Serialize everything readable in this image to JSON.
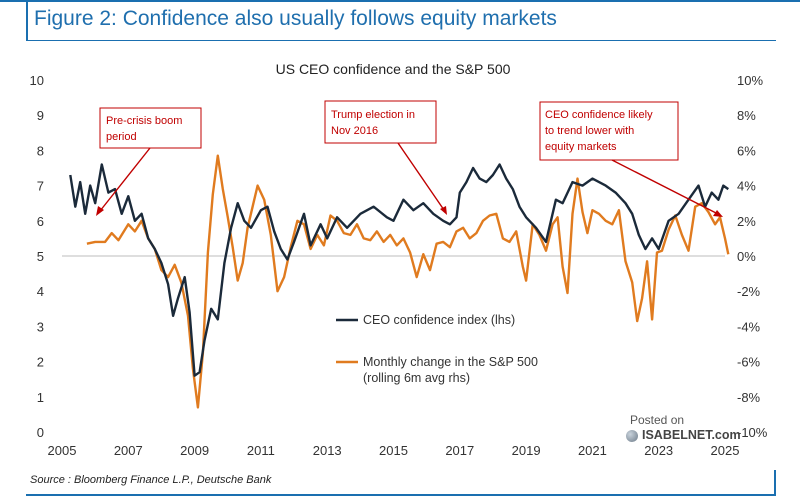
{
  "figure": {
    "title": "Figure 2: Confidence also usually follows equity markets",
    "source": "Source : Bloomberg Finance L.P., Deutsche Bank"
  },
  "watermark": {
    "line1": "Posted on",
    "line2": "ISABELNET.com"
  },
  "colors": {
    "accent": "#1f6fae",
    "ceo": "#1b2a3a",
    "sp": "#e07b1f",
    "annotation": "#c00000"
  },
  "chart_data": {
    "type": "line",
    "title": "US CEO confidence and the S&P 500",
    "x_ticks": [
      "2005",
      "2007",
      "2009",
      "2011",
      "2013",
      "2015",
      "2017",
      "2019",
      "2021",
      "2023",
      "2025"
    ],
    "y_left_ticks": [
      "0",
      "1",
      "2",
      "3",
      "4",
      "5",
      "6",
      "7",
      "8",
      "9",
      "10"
    ],
    "y_right_ticks": [
      "-10%",
      "-8%",
      "-6%",
      "-4%",
      "-2%",
      "0%",
      "2%",
      "4%",
      "6%",
      "8%",
      "10%"
    ],
    "xlim": [
      2005,
      2025
    ],
    "ylim_left": [
      0,
      10
    ],
    "ylim_right": [
      -10,
      10
    ],
    "grid": false,
    "series": [
      {
        "name": "CEO confidence index (lhs)",
        "axis": "left",
        "points": [
          [
            2005.25,
            7.3
          ],
          [
            2005.4,
            6.4
          ],
          [
            2005.55,
            7.1
          ],
          [
            2005.7,
            6.2
          ],
          [
            2005.85,
            7.0
          ],
          [
            2006.0,
            6.5
          ],
          [
            2006.2,
            7.6
          ],
          [
            2006.4,
            6.8
          ],
          [
            2006.6,
            6.9
          ],
          [
            2006.8,
            6.2
          ],
          [
            2007.0,
            6.7
          ],
          [
            2007.2,
            6.0
          ],
          [
            2007.4,
            6.2
          ],
          [
            2007.6,
            5.5
          ],
          [
            2007.8,
            5.2
          ],
          [
            2008.0,
            4.8
          ],
          [
            2008.2,
            4.2
          ],
          [
            2008.35,
            3.3
          ],
          [
            2008.5,
            3.8
          ],
          [
            2008.7,
            4.4
          ],
          [
            2008.85,
            3.4
          ],
          [
            2009.0,
            1.6
          ],
          [
            2009.15,
            1.7
          ],
          [
            2009.3,
            2.6
          ],
          [
            2009.5,
            3.5
          ],
          [
            2009.7,
            3.2
          ],
          [
            2009.9,
            4.8
          ],
          [
            2010.1,
            5.8
          ],
          [
            2010.3,
            6.5
          ],
          [
            2010.5,
            6.0
          ],
          [
            2010.7,
            5.8
          ],
          [
            2011.0,
            6.3
          ],
          [
            2011.2,
            6.4
          ],
          [
            2011.4,
            5.7
          ],
          [
            2011.6,
            5.2
          ],
          [
            2011.8,
            4.9
          ],
          [
            2012.0,
            5.4
          ],
          [
            2012.3,
            6.2
          ],
          [
            2012.5,
            5.3
          ],
          [
            2012.8,
            5.9
          ],
          [
            2013.0,
            5.5
          ],
          [
            2013.3,
            6.1
          ],
          [
            2013.6,
            5.8
          ],
          [
            2014.0,
            6.2
          ],
          [
            2014.4,
            6.4
          ],
          [
            2014.8,
            6.1
          ],
          [
            2015.0,
            6.0
          ],
          [
            2015.3,
            6.6
          ],
          [
            2015.6,
            6.3
          ],
          [
            2015.9,
            6.5
          ],
          [
            2016.2,
            6.2
          ],
          [
            2016.5,
            6.0
          ],
          [
            2016.7,
            5.9
          ],
          [
            2016.9,
            6.1
          ],
          [
            2017.0,
            6.8
          ],
          [
            2017.2,
            7.1
          ],
          [
            2017.4,
            7.5
          ],
          [
            2017.6,
            7.2
          ],
          [
            2017.8,
            7.1
          ],
          [
            2018.0,
            7.3
          ],
          [
            2018.2,
            7.6
          ],
          [
            2018.4,
            7.2
          ],
          [
            2018.6,
            6.9
          ],
          [
            2018.8,
            6.4
          ],
          [
            2019.0,
            6.1
          ],
          [
            2019.3,
            5.8
          ],
          [
            2019.6,
            5.4
          ],
          [
            2019.9,
            6.6
          ],
          [
            2020.1,
            6.5
          ],
          [
            2020.4,
            7.1
          ],
          [
            2020.7,
            7.0
          ],
          [
            2021.0,
            7.2
          ],
          [
            2021.4,
            7.0
          ],
          [
            2021.7,
            6.8
          ],
          [
            2022.0,
            6.5
          ],
          [
            2022.2,
            6.2
          ],
          [
            2022.4,
            5.6
          ],
          [
            2022.6,
            5.2
          ],
          [
            2022.8,
            5.5
          ],
          [
            2023.0,
            5.2
          ],
          [
            2023.3,
            6.0
          ],
          [
            2023.6,
            6.2
          ],
          [
            2023.9,
            6.6
          ],
          [
            2024.2,
            7.0
          ],
          [
            2024.4,
            6.4
          ],
          [
            2024.6,
            6.8
          ],
          [
            2024.8,
            6.6
          ],
          [
            2024.95,
            7.0
          ],
          [
            2025.1,
            6.9
          ]
        ]
      },
      {
        "name": "Monthly change in the S&P 500 (rolling 6m avg rhs)",
        "axis": "right",
        "points": [
          [
            2005.75,
            0.7
          ],
          [
            2006.0,
            0.8
          ],
          [
            2006.3,
            0.8
          ],
          [
            2006.5,
            1.3
          ],
          [
            2006.7,
            0.9
          ],
          [
            2007.0,
            1.8
          ],
          [
            2007.2,
            1.4
          ],
          [
            2007.4,
            2.0
          ],
          [
            2007.6,
            1.0
          ],
          [
            2007.8,
            0.4
          ],
          [
            2008.0,
            -0.8
          ],
          [
            2008.2,
            -1.2
          ],
          [
            2008.4,
            -0.5
          ],
          [
            2008.6,
            -1.5
          ],
          [
            2008.8,
            -3.4
          ],
          [
            2008.95,
            -6.4
          ],
          [
            2009.1,
            -8.6
          ],
          [
            2009.25,
            -5.5
          ],
          [
            2009.4,
            0.2
          ],
          [
            2009.55,
            3.5
          ],
          [
            2009.7,
            5.7
          ],
          [
            2009.85,
            3.8
          ],
          [
            2010.0,
            2.2
          ],
          [
            2010.15,
            0.5
          ],
          [
            2010.3,
            -1.4
          ],
          [
            2010.45,
            -0.4
          ],
          [
            2010.6,
            1.6
          ],
          [
            2010.75,
            2.8
          ],
          [
            2010.9,
            4.0
          ],
          [
            2011.1,
            3.2
          ],
          [
            2011.3,
            1.2
          ],
          [
            2011.5,
            -2.0
          ],
          [
            2011.7,
            -1.2
          ],
          [
            2011.9,
            0.5
          ],
          [
            2012.1,
            2.0
          ],
          [
            2012.3,
            1.8
          ],
          [
            2012.5,
            0.4
          ],
          [
            2012.7,
            1.2
          ],
          [
            2012.9,
            0.6
          ],
          [
            2013.1,
            2.3
          ],
          [
            2013.3,
            2.0
          ],
          [
            2013.5,
            1.3
          ],
          [
            2013.7,
            1.2
          ],
          [
            2013.9,
            1.8
          ],
          [
            2014.1,
            1.0
          ],
          [
            2014.3,
            0.9
          ],
          [
            2014.5,
            1.4
          ],
          [
            2014.7,
            0.8
          ],
          [
            2014.9,
            1.2
          ],
          [
            2015.1,
            0.6
          ],
          [
            2015.3,
            1.0
          ],
          [
            2015.5,
            0.2
          ],
          [
            2015.7,
            -1.2
          ],
          [
            2015.9,
            0.1
          ],
          [
            2016.1,
            -0.8
          ],
          [
            2016.3,
            0.7
          ],
          [
            2016.5,
            0.8
          ],
          [
            2016.7,
            0.5
          ],
          [
            2016.9,
            1.4
          ],
          [
            2017.1,
            1.6
          ],
          [
            2017.3,
            1.0
          ],
          [
            2017.5,
            1.3
          ],
          [
            2017.7,
            2.0
          ],
          [
            2017.9,
            2.3
          ],
          [
            2018.1,
            2.4
          ],
          [
            2018.3,
            1.0
          ],
          [
            2018.5,
            0.8
          ],
          [
            2018.7,
            1.4
          ],
          [
            2018.9,
            -0.6
          ],
          [
            2019.0,
            -1.4
          ],
          [
            2019.2,
            1.8
          ],
          [
            2019.4,
            1.2
          ],
          [
            2019.6,
            0.3
          ],
          [
            2019.8,
            1.8
          ],
          [
            2019.95,
            2.2
          ],
          [
            2020.1,
            -0.6
          ],
          [
            2020.25,
            -2.1
          ],
          [
            2020.4,
            2.4
          ],
          [
            2020.55,
            4.4
          ],
          [
            2020.7,
            2.5
          ],
          [
            2020.85,
            1.3
          ],
          [
            2021.0,
            2.6
          ],
          [
            2021.2,
            2.4
          ],
          [
            2021.4,
            2.0
          ],
          [
            2021.6,
            1.8
          ],
          [
            2021.8,
            2.6
          ],
          [
            2022.0,
            -0.3
          ],
          [
            2022.2,
            -1.5
          ],
          [
            2022.35,
            -3.7
          ],
          [
            2022.5,
            -2.4
          ],
          [
            2022.65,
            -0.3
          ],
          [
            2022.8,
            -3.6
          ],
          [
            2022.95,
            0.2
          ],
          [
            2023.1,
            0.3
          ],
          [
            2023.3,
            1.5
          ],
          [
            2023.5,
            2.3
          ],
          [
            2023.7,
            1.2
          ],
          [
            2023.9,
            0.3
          ],
          [
            2024.1,
            2.8
          ],
          [
            2024.3,
            3.0
          ],
          [
            2024.5,
            2.5
          ],
          [
            2024.7,
            1.8
          ],
          [
            2024.85,
            2.2
          ],
          [
            2025.0,
            1.0
          ],
          [
            2025.1,
            0.1
          ]
        ]
      }
    ],
    "legend": {
      "ceo_label": "CEO confidence index (lhs)",
      "sp_line1": "Monthly change in the S&P 500",
      "sp_line2": "(rolling 6m avg rhs)",
      "placement": "center"
    },
    "annotations": [
      {
        "lines": [
          "Pre-crisis boom",
          "period"
        ]
      },
      {
        "lines": [
          "Trump  election in",
          "Nov 2016"
        ]
      },
      {
        "lines": [
          "CEO confidence likely",
          "to trend lower with",
          "equity markets"
        ]
      }
    ]
  }
}
